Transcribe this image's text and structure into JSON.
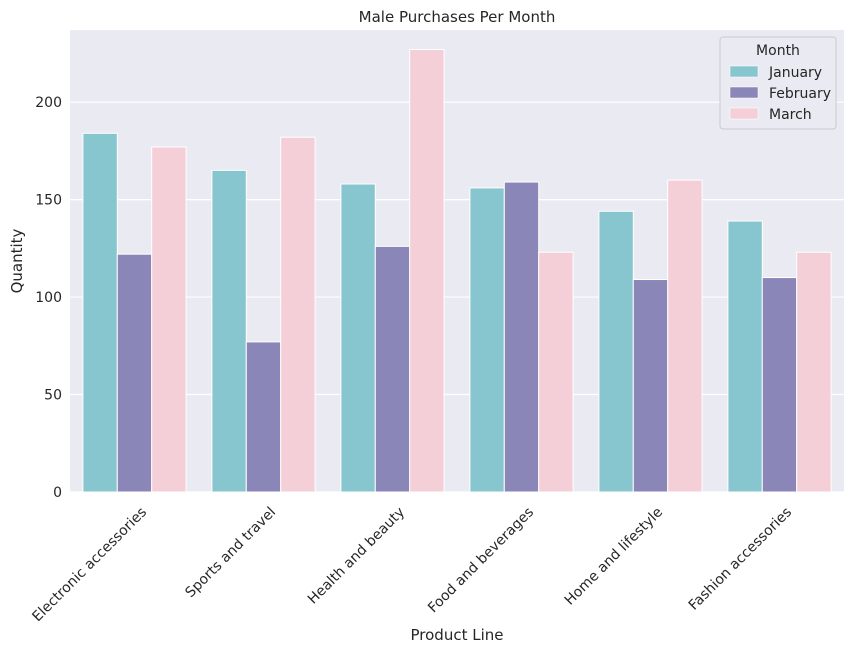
{
  "chart_data": {
    "type": "bar",
    "title": "Male Purchases Per Month",
    "xlabel": "Product Line",
    "ylabel": "Quantity",
    "ylim": [
      0,
      237
    ],
    "yticks": [
      0,
      50,
      100,
      150,
      200
    ],
    "categories": [
      "Electronic accessories",
      "Sports and travel",
      "Health and beauty",
      "Food and beverages",
      "Home and lifestyle",
      "Fashion accessories"
    ],
    "series": [
      {
        "name": "January",
        "color": "#87c6cf",
        "values": [
          184,
          165,
          158,
          156,
          144,
          139
        ]
      },
      {
        "name": "February",
        "color": "#8b86b8",
        "values": [
          122,
          77,
          126,
          159,
          109,
          110
        ]
      },
      {
        "name": "March",
        "color": "#f5cfd7",
        "values": [
          177,
          182,
          227,
          123,
          160,
          123
        ]
      }
    ],
    "legend": {
      "title": "Month",
      "placement": "top-right"
    },
    "grid": true,
    "background": "#eaeaf2"
  }
}
